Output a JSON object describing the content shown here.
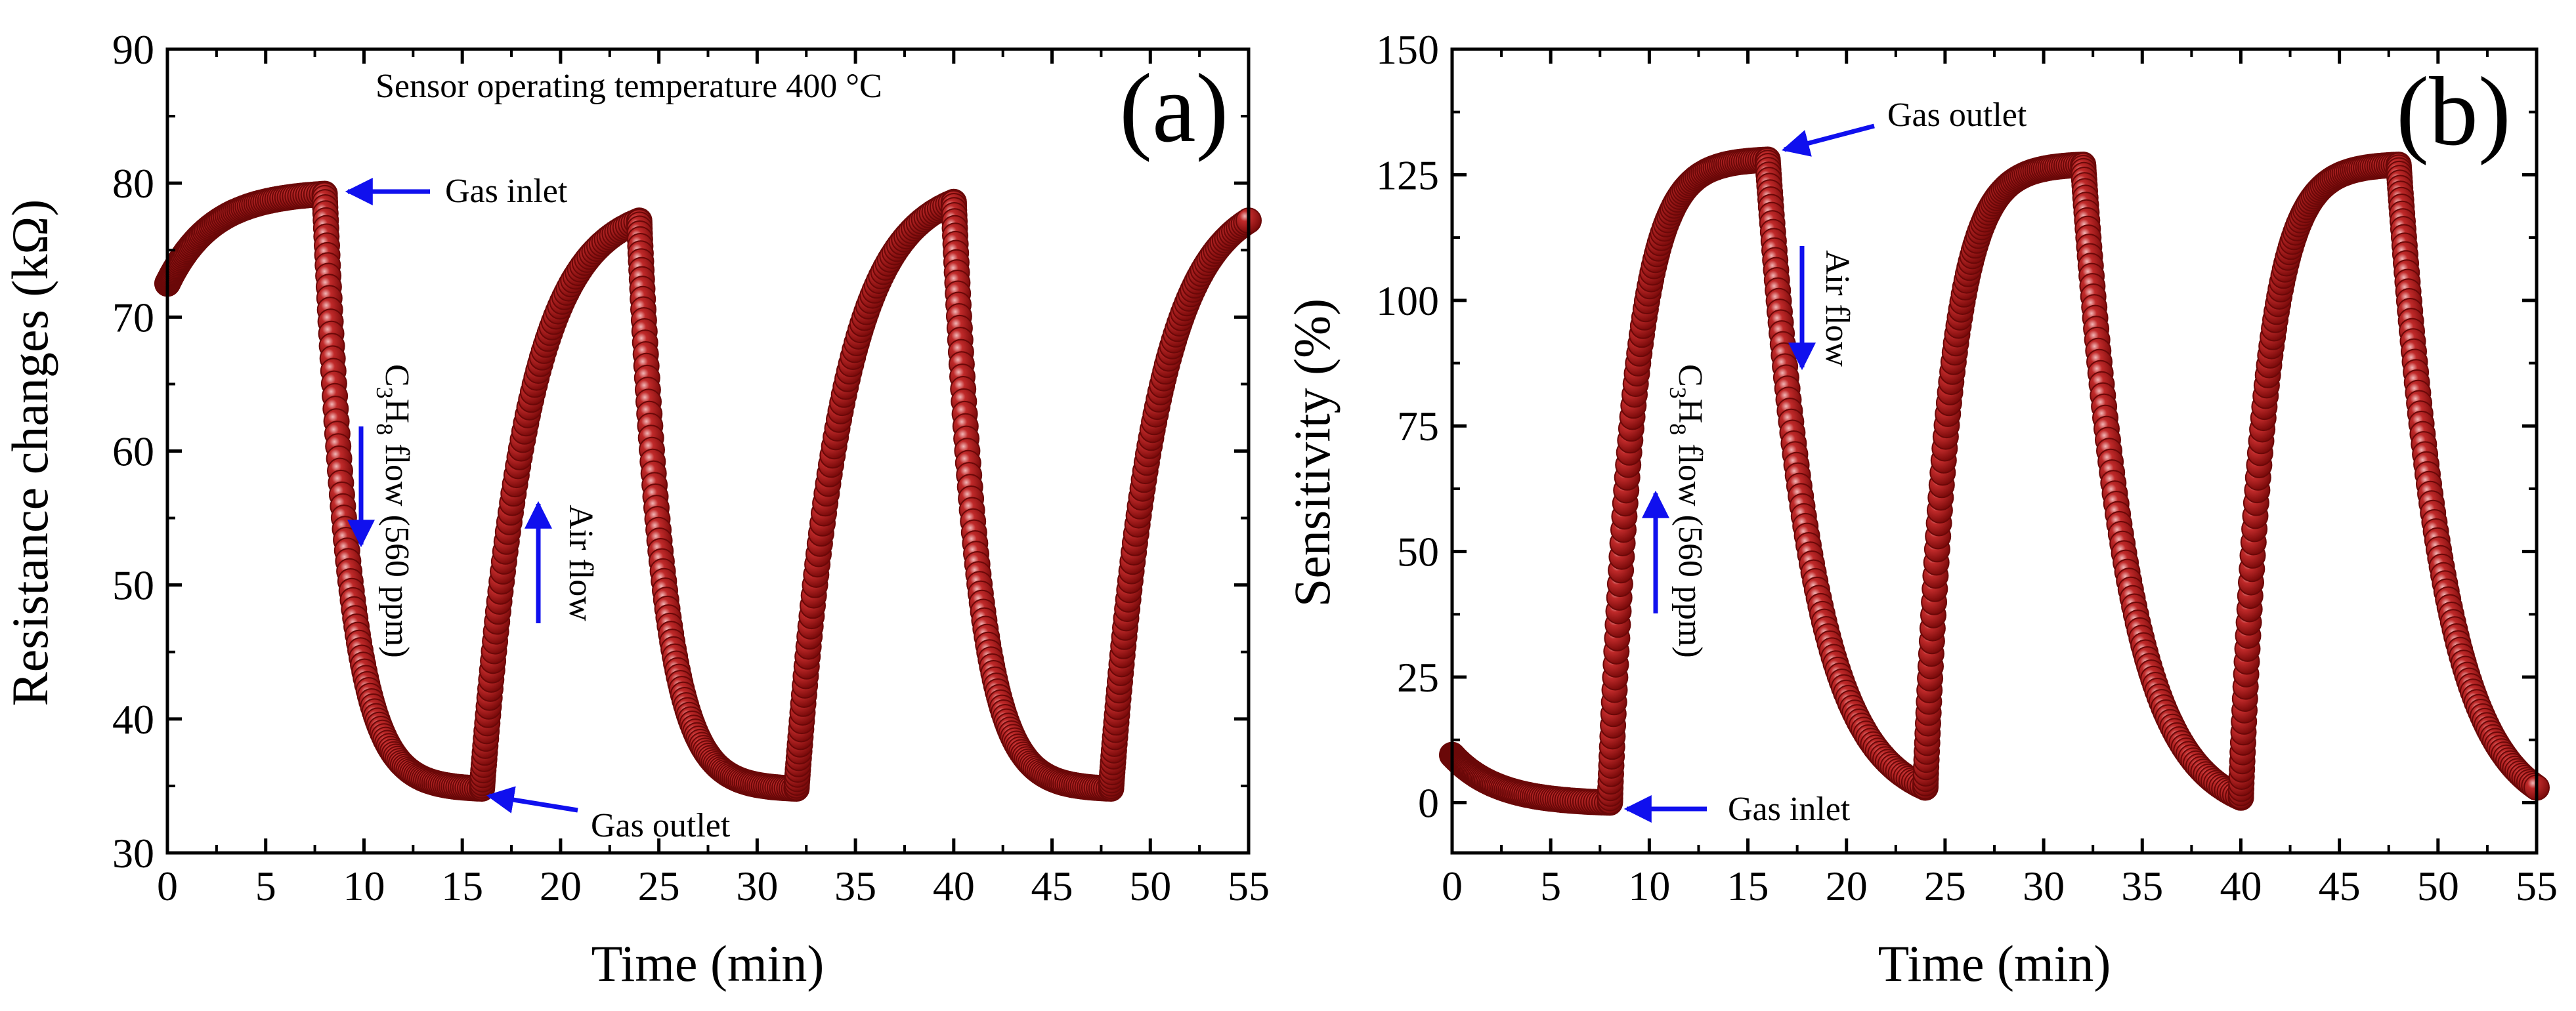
{
  "chart_data": [
    {
      "id": "a",
      "type": "scatter",
      "panel_label": "(a)",
      "annotation_title": "Sensor operating temperature 400 °C",
      "xlabel": "Time (min)",
      "ylabel": "Resistance changes (kΩ)",
      "xlim": [
        0,
        55
      ],
      "ylim": [
        30,
        90
      ],
      "xticks": [
        0,
        5,
        10,
        15,
        20,
        25,
        30,
        35,
        40,
        45,
        50,
        55
      ],
      "yticks": [
        30,
        40,
        50,
        60,
        70,
        80,
        90
      ],
      "marker_color": "#9b1111",
      "segments": [
        {
          "phase": "air",
          "t0": 0,
          "t1": 8,
          "start": 72.5,
          "end": 79.2
        },
        {
          "phase": "gas",
          "t0": 8,
          "t1": 16,
          "start": 79.2,
          "end": 34.8
        },
        {
          "phase": "air",
          "t0": 16,
          "t1": 24,
          "start": 34.8,
          "end": 77.2
        },
        {
          "phase": "gas",
          "t0": 24,
          "t1": 32,
          "start": 77.2,
          "end": 34.8
        },
        {
          "phase": "air",
          "t0": 32,
          "t1": 40,
          "start": 34.8,
          "end": 78.6
        },
        {
          "phase": "gas",
          "t0": 40,
          "t1": 48,
          "start": 78.6,
          "end": 34.8
        },
        {
          "phase": "air",
          "t0": 48,
          "t1": 55,
          "start": 34.8,
          "end": 77.2
        }
      ],
      "annotations": {
        "gas_inlet": "Gas inlet",
        "gas_outlet": "Gas outlet",
        "flow_main": "C",
        "flow_sub1": "3",
        "flow_mid": "H",
        "flow_sub2": "8",
        "flow_rest": " flow (560 ppm)",
        "air_flow": "Air flow"
      }
    },
    {
      "id": "b",
      "type": "scatter",
      "panel_label": "(b)",
      "xlabel": "Time (min)",
      "ylabel": "Sensitivity (%)",
      "xlim": [
        0,
        55
      ],
      "ylim": [
        -10,
        150
      ],
      "xticks": [
        0,
        5,
        10,
        15,
        20,
        25,
        30,
        35,
        40,
        45,
        50,
        55
      ],
      "yticks": [
        0,
        25,
        50,
        75,
        100,
        125,
        150
      ],
      "marker_color": "#9b1111",
      "segments": [
        {
          "phase": "air",
          "t0": 0,
          "t1": 8,
          "start": 9.5,
          "end": 0
        },
        {
          "phase": "gas",
          "t0": 8,
          "t1": 16,
          "start": 0,
          "end": 128
        },
        {
          "phase": "air",
          "t0": 16,
          "t1": 24,
          "start": 128,
          "end": 3
        },
        {
          "phase": "gas",
          "t0": 24,
          "t1": 32,
          "start": 3,
          "end": 127
        },
        {
          "phase": "air",
          "t0": 32,
          "t1": 40,
          "start": 127,
          "end": 1
        },
        {
          "phase": "gas",
          "t0": 40,
          "t1": 48,
          "start": 1,
          "end": 127
        },
        {
          "phase": "air",
          "t0": 48,
          "t1": 55,
          "start": 127,
          "end": 3
        }
      ],
      "annotations": {
        "gas_inlet": "Gas inlet",
        "gas_outlet": "Gas outlet",
        "flow_main": "C",
        "flow_sub1": "3",
        "flow_mid": "H",
        "flow_sub2": "8",
        "flow_rest": " flow (560 ppm)",
        "air_flow": "Air flow"
      }
    }
  ],
  "colors": {
    "marker": "#9b1111",
    "marker_highlight": "#e9a0a0",
    "arrow": "#1010ee",
    "axis": "#000000"
  }
}
